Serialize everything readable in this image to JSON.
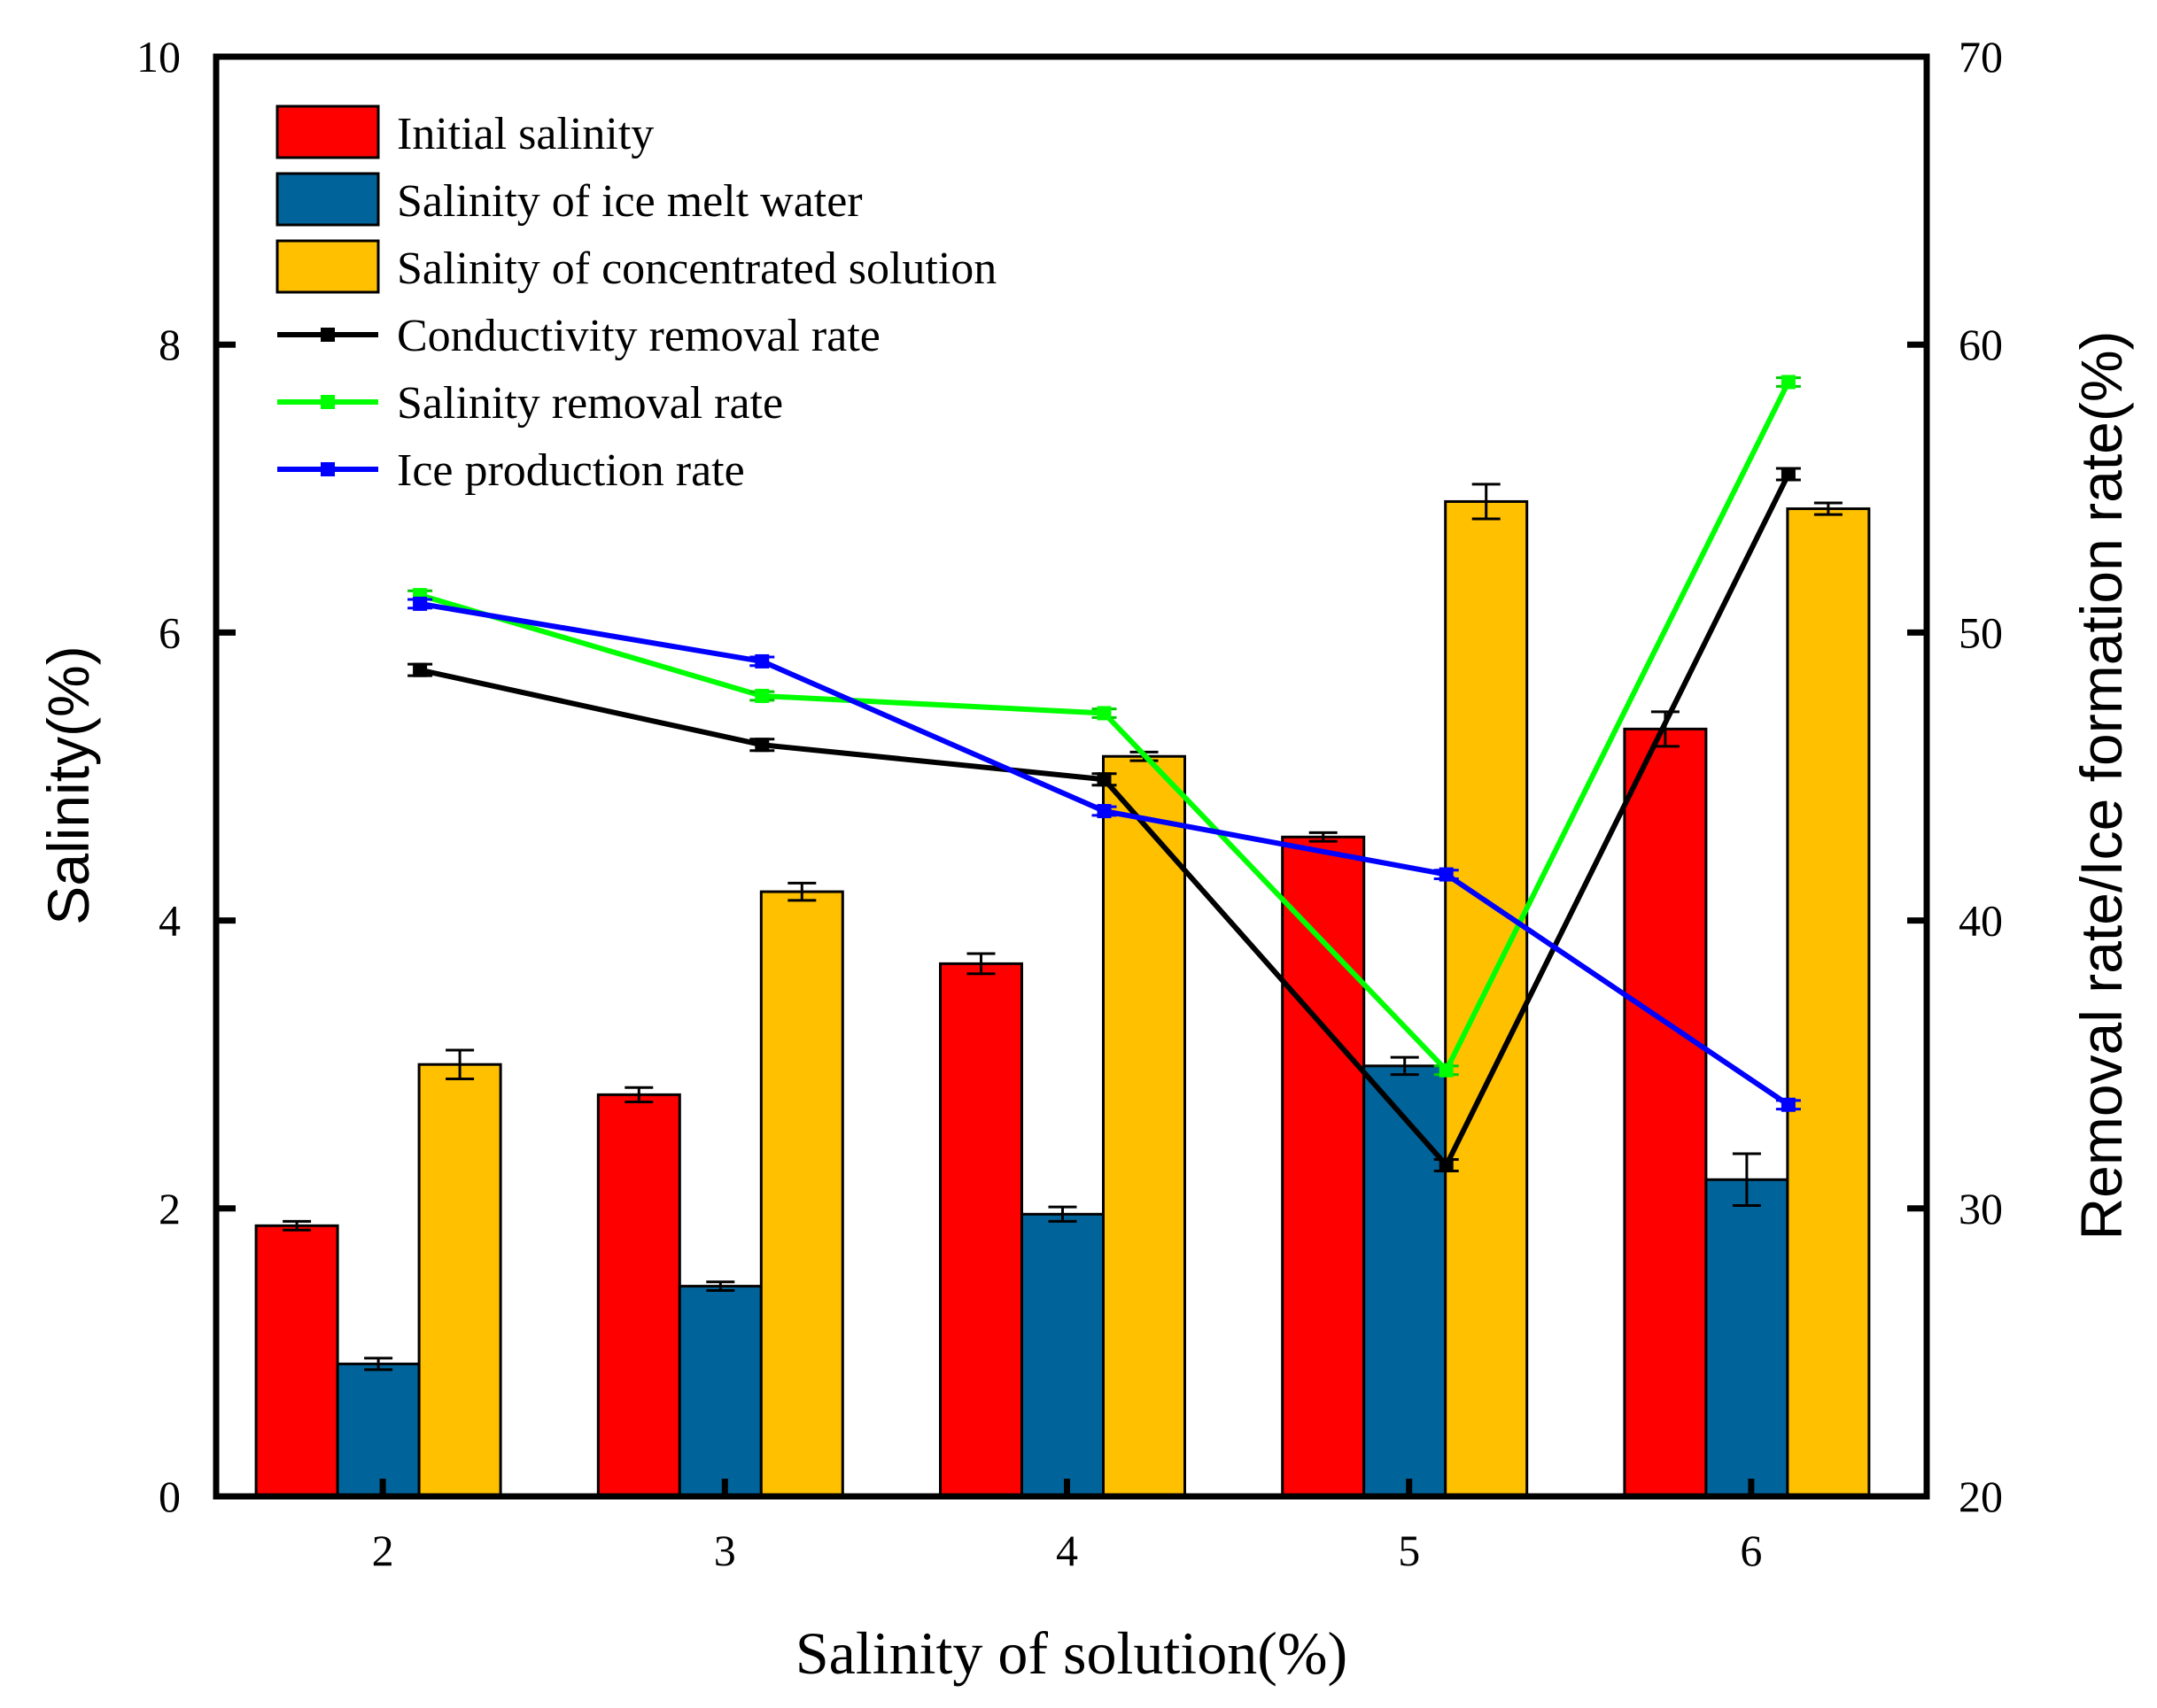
{
  "chart_data": {
    "type": "bar",
    "xlabel": "Salinity of solution(%)",
    "ylabel_left": "Salinity(%)",
    "ylabel_right": "Removal rate/Ice formation rate(%)",
    "categories": [
      "2",
      "3",
      "4",
      "5",
      "6"
    ],
    "ylim_left": [
      0,
      10
    ],
    "yticks_left": [
      "0",
      "2",
      "4",
      "6",
      "8",
      "10"
    ],
    "ylim_right": [
      20,
      70
    ],
    "yticks_right": [
      "20",
      "30",
      "40",
      "50",
      "60",
      "70"
    ],
    "grid": false,
    "legend_position": "top-left",
    "bar_series": [
      {
        "name": "Initial salinity",
        "color": "#ff0000",
        "values": [
          1.88,
          2.79,
          3.7,
          4.58,
          5.33
        ],
        "errors": [
          0.03,
          0.05,
          0.07,
          0.03,
          0.12
        ]
      },
      {
        "name": "Salinity of ice melt water",
        "color": "#00649a",
        "values": [
          0.92,
          1.46,
          1.96,
          2.99,
          2.2
        ],
        "errors": [
          0.04,
          0.03,
          0.05,
          0.06,
          0.18
        ]
      },
      {
        "name": "Salinity of concentrated solution",
        "color": "#ffc000",
        "values": [
          3.0,
          4.2,
          5.14,
          6.91,
          6.86
        ],
        "errors": [
          0.1,
          0.06,
          0.03,
          0.12,
          0.04
        ]
      }
    ],
    "line_series": [
      {
        "name": "Conductivity removal rate",
        "color": "#000000",
        "values": [
          48.7,
          46.1,
          44.9,
          31.5,
          55.5
        ],
        "errors": [
          0.2,
          0.2,
          0.2,
          0.2,
          0.2
        ]
      },
      {
        "name": "Salinity removal rate",
        "color": "#00ff00",
        "values": [
          51.3,
          47.8,
          47.2,
          34.8,
          58.7
        ],
        "errors": [
          0.15,
          0.15,
          0.15,
          0.15,
          0.15
        ]
      },
      {
        "name": "Ice production rate",
        "color": "#0000ff",
        "values": [
          51.0,
          49.0,
          43.8,
          41.6,
          33.6
        ],
        "errors": [
          0.15,
          0.15,
          0.15,
          0.15,
          0.15
        ]
      }
    ]
  }
}
